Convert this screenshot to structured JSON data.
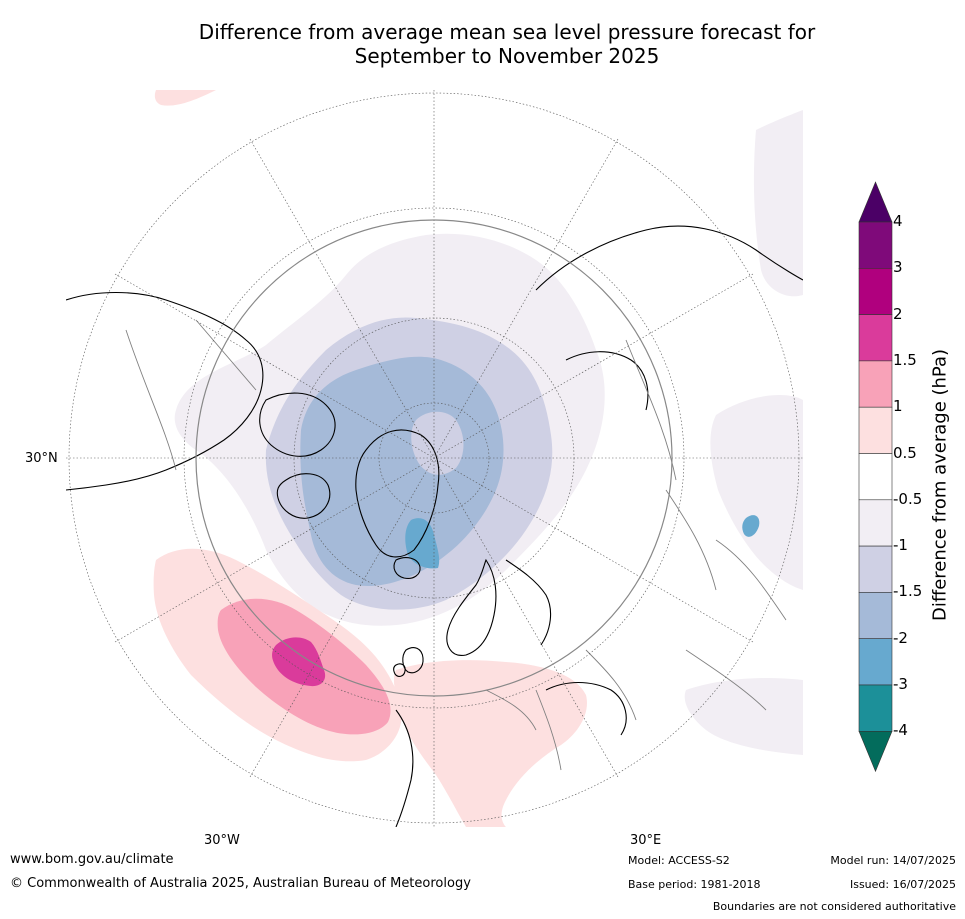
{
  "title": {
    "line1": "Difference from average mean sea level pressure forecast for",
    "line2": "September to November 2025"
  },
  "map": {
    "projection": "north-polar-stereographic",
    "ocean_color": "#ffffff",
    "coastline_color": "#000000",
    "border_color": "#808080",
    "graticule_color": "#555555",
    "grid_labels": [
      "30°N",
      "30°W",
      "30°E"
    ],
    "anomaly_regions": [
      {
        "region": "Arctic Ocean and Greenland",
        "value_class": "-1.5 to -2"
      },
      {
        "region": "Arctic Basin core",
        "value_class": "-1 to -1.5"
      },
      {
        "region": "East Greenland",
        "value_class": "-2 to -3"
      },
      {
        "region": "North Atlantic (west of Iberia)",
        "value_class": "1.5 to 2"
      },
      {
        "region": "Europe and Mediterranean",
        "value_class": "0.5 to 1"
      },
      {
        "region": "Northern Eurasia",
        "value_class": "-0.5 to -1"
      }
    ]
  },
  "colorbar": {
    "title": "Difference from average (hPa)",
    "ticks": [
      "4",
      "3",
      "2",
      "1.5",
      "1",
      "0.5",
      "-0.5",
      "-1",
      "-1.5",
      "-2",
      "-3",
      "-4"
    ],
    "colors_top_to_bottom": [
      "#4b0066",
      "#7f0a7a",
      "#b0007e",
      "#da3b9b",
      "#f8a2b8",
      "#fde0e0",
      "#ffffff",
      "#f2eef4",
      "#cfd0e4",
      "#a5bad8",
      "#67a9cf",
      "#1c9099",
      "#036c5c"
    ]
  },
  "footer": {
    "website": "www.bom.gov.au/climate",
    "copyright": "© Commonwealth of Australia 2025, Australian Bureau of Meteorology",
    "model": "Model: ACCESS-S2",
    "base_period": "Base period: 1981-2018",
    "model_run": "Model run: 14/07/2025",
    "issued": "Issued: 16/07/2025",
    "disclaimer": "Boundaries are not considered authoritative"
  }
}
